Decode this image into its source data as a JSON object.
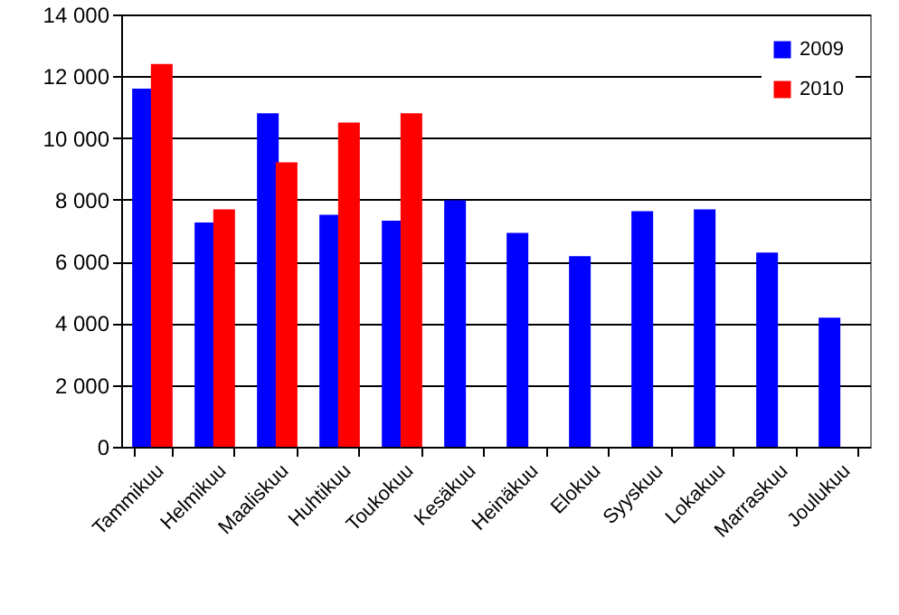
{
  "chart_data": {
    "type": "bar",
    "categories": [
      "Tammikuu",
      "Helmikuu",
      "Maaliskuu",
      "Huhtikuu",
      "Toukokuu",
      "Kesäkuu",
      "Heinäkuu",
      "Elokuu",
      "Syyskuu",
      "Lokakuu",
      "Marraskuu",
      "Joulukuu"
    ],
    "series": [
      {
        "name": "2009",
        "color": "#0000ff",
        "values": [
          11600,
          7260,
          10800,
          7510,
          7320,
          7980,
          6930,
          6170,
          7630,
          7690,
          6290,
          4180
        ]
      },
      {
        "name": "2010",
        "color": "#ff0000",
        "values": [
          12400,
          7690,
          9210,
          10500,
          10800,
          null,
          null,
          null,
          null,
          null,
          null,
          null
        ]
      }
    ],
    "ylim": [
      0,
      14000
    ],
    "yticks": [
      {
        "value": 0,
        "label": "0"
      },
      {
        "value": 2000,
        "label": "2 000"
      },
      {
        "value": 4000,
        "label": "4 000"
      },
      {
        "value": 6000,
        "label": "6 000"
      },
      {
        "value": 8000,
        "label": "8 000"
      },
      {
        "value": 10000,
        "label": "10 000"
      },
      {
        "value": 12000,
        "label": "12 000"
      },
      {
        "value": 14000,
        "label": "14 000"
      }
    ],
    "grid": "y",
    "legend": "top right"
  }
}
